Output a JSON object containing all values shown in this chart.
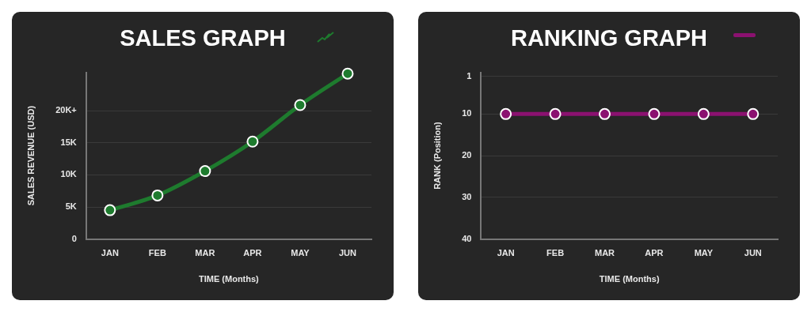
{
  "chart_data": [
    {
      "type": "line",
      "title": "SALES GRAPH",
      "xlabel": "TIME (Months)",
      "ylabel": "SALES REVENUE (USD)",
      "categories": [
        "JAN",
        "FEB",
        "MAR",
        "APR",
        "MAY",
        "JUN"
      ],
      "series": [
        {
          "color": "#1e7b2e",
          "values": [
            4500,
            6800,
            10600,
            15200,
            20900,
            25800
          ]
        }
      ],
      "ylim": [
        0,
        26000
      ],
      "yticks": [
        0,
        {
          "value": 5000,
          "label": "5K"
        },
        {
          "value": 10000,
          "label": "10K"
        },
        {
          "value": 15000,
          "label": "15K"
        },
        {
          "value": 20000,
          "label": "20K+"
        }
      ],
      "grid": "y",
      "marker": "circle"
    },
    {
      "type": "line",
      "title": "RANKING GRAPH",
      "xlabel": "TIME (Months)",
      "ylabel": "RANK (Position)",
      "categories": [
        "JAN",
        "FEB",
        "MAR",
        "APR",
        "MAY",
        "JUN"
      ],
      "series": [
        {
          "color": "#8b1170",
          "values": [
            10,
            10,
            10,
            10,
            10,
            10
          ]
        }
      ],
      "ylim": [
        40,
        0
      ],
      "yticks": [
        1,
        10,
        20,
        30,
        40
      ],
      "grid": "y",
      "marker": "circle"
    }
  ]
}
